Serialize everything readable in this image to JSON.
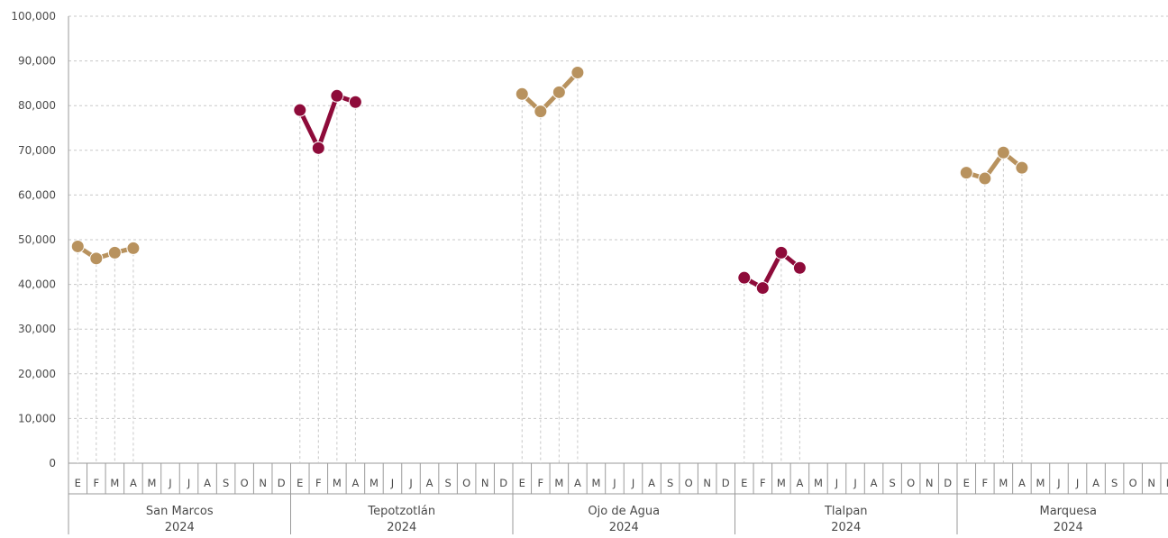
{
  "chart_data": {
    "type": "line",
    "y_ticks": [
      "0",
      "10,000",
      "20,000",
      "30,000",
      "40,000",
      "50,000",
      "60,000",
      "70,000",
      "80,000",
      "90,000",
      "100,000"
    ],
    "ylim": [
      0,
      100000
    ],
    "grid": true,
    "months": [
      "E",
      "F",
      "M",
      "A",
      "M",
      "J",
      "J",
      "A",
      "S",
      "O",
      "N",
      "D"
    ],
    "groups": [
      {
        "name": "San Marcos",
        "year": "2024",
        "color": "#b8925e",
        "values": [
          48500,
          45800,
          47100,
          48100
        ]
      },
      {
        "name": "Tepotzotlán",
        "year": "2024",
        "color": "#8e0b3a",
        "values": [
          79000,
          70500,
          82200,
          80800
        ]
      },
      {
        "name": "Ojo de Agua",
        "year": "2024",
        "color": "#b8925e",
        "values": [
          82600,
          78700,
          83000,
          87400
        ]
      },
      {
        "name": "Tlalpan",
        "year": "2024",
        "color": "#8e0b3a",
        "values": [
          41500,
          39200,
          47100,
          43700
        ]
      },
      {
        "name": "Marquesa",
        "year": "2024",
        "color": "#b8925e",
        "values": [
          65000,
          63700,
          69500,
          66100
        ]
      }
    ]
  }
}
